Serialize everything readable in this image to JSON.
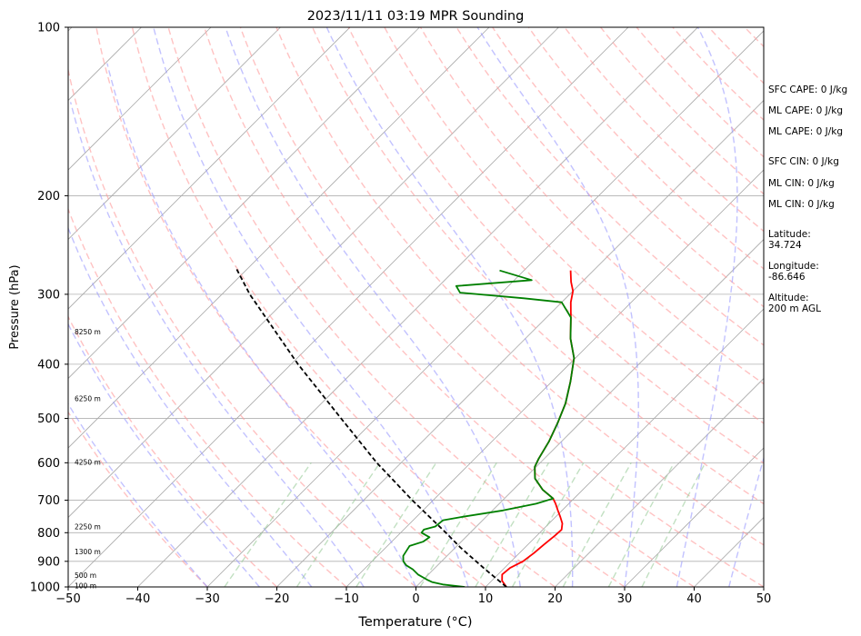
{
  "chart_data": {
    "type": "line",
    "title": "2023/11/11 03:19 MPR Sounding",
    "xlabel": "Temperature (°C)",
    "ylabel": "Pressure (hPa)",
    "xlim": [
      -50,
      50
    ],
    "ylim": [
      1000,
      100
    ],
    "y_scale": "log",
    "skew": "skew-T (isotherms slanted 45°)",
    "x_ticks": [
      "−50",
      "−40",
      "−30",
      "−20",
      "−10",
      "0",
      "10",
      "20",
      "30",
      "40",
      "50"
    ],
    "x_tick_values": [
      -50,
      -40,
      -30,
      -20,
      -10,
      0,
      10,
      20,
      30,
      40,
      50
    ],
    "y_ticks": [
      "100",
      "200",
      "300",
      "400",
      "500",
      "600",
      "700",
      "800",
      "900",
      "1000"
    ],
    "y_tick_values": [
      100,
      200,
      300,
      400,
      500,
      600,
      700,
      800,
      900,
      1000
    ],
    "grid": true,
    "height_labels": [
      {
        "text": "8250 m",
        "p": 350
      },
      {
        "text": "6250 m",
        "p": 460
      },
      {
        "text": "4250 m",
        "p": 598
      },
      {
        "text": "2250 m",
        "p": 780
      },
      {
        "text": "1300 m",
        "p": 865
      },
      {
        "text": "500 m",
        "p": 952
      },
      {
        "text": "100 m",
        "p": 995
      }
    ],
    "series": [
      {
        "role": "temperature",
        "color": "#ff0000",
        "points": [
          [
            1000,
            13.0
          ],
          [
            975,
            11.5
          ],
          [
            950,
            10.6
          ],
          [
            925,
            10.8
          ],
          [
            900,
            11.7
          ],
          [
            870,
            12.1
          ],
          [
            840,
            12.3
          ],
          [
            810,
            12.6
          ],
          [
            790,
            12.7
          ],
          [
            770,
            11.9
          ],
          [
            750,
            10.7
          ],
          [
            730,
            9.4
          ],
          [
            710,
            8.1
          ],
          [
            695,
            7.0
          ],
          [
            670,
            4.2
          ],
          [
            640,
            1.5
          ],
          [
            610,
            -0.2
          ],
          [
            590,
            -0.8
          ],
          [
            550,
            -1.8
          ],
          [
            510,
            -3.2
          ],
          [
            470,
            -4.9
          ],
          [
            430,
            -7.3
          ],
          [
            390,
            -10.2
          ],
          [
            360,
            -13.5
          ],
          [
            330,
            -16.5
          ],
          [
            310,
            -18.7
          ],
          [
            296,
            -20.0
          ],
          [
            285,
            -21.6
          ],
          [
            272,
            -23.3
          ]
        ]
      },
      {
        "role": "dewpoint",
        "color": "#008000",
        "points": [
          [
            1000,
            7.0
          ],
          [
            990,
            3.5
          ],
          [
            980,
            1.6
          ],
          [
            970,
            0.5
          ],
          [
            950,
            -1.5
          ],
          [
            930,
            -3.0
          ],
          [
            915,
            -4.5
          ],
          [
            900,
            -5.5
          ],
          [
            880,
            -6.3
          ],
          [
            860,
            -6.6
          ],
          [
            845,
            -6.8
          ],
          [
            830,
            -5.5
          ],
          [
            815,
            -5.2
          ],
          [
            800,
            -7.0
          ],
          [
            790,
            -7.1
          ],
          [
            780,
            -5.9
          ],
          [
            760,
            -5.7
          ],
          [
            750,
            -3.5
          ],
          [
            730,
            1.5
          ],
          [
            710,
            5.3
          ],
          [
            695,
            7.0
          ],
          [
            670,
            4.2
          ],
          [
            640,
            1.5
          ],
          [
            610,
            -0.2
          ],
          [
            590,
            -0.8
          ],
          [
            550,
            -1.8
          ],
          [
            510,
            -3.2
          ],
          [
            470,
            -4.9
          ],
          [
            430,
            -7.3
          ],
          [
            390,
            -10.2
          ],
          [
            360,
            -13.5
          ],
          [
            330,
            -16.5
          ],
          [
            310,
            -20.0
          ],
          [
            305,
            -26.0
          ],
          [
            298,
            -36.0
          ],
          [
            290,
            -37.5
          ],
          [
            283,
            -27.5
          ],
          [
            272,
            -33.5
          ]
        ]
      },
      {
        "role": "parcel",
        "color": "#000000",
        "style": "dashed",
        "points": [
          [
            1000,
            13.0
          ],
          [
            925,
            7.0
          ],
          [
            850,
            0.7
          ],
          [
            800,
            -3.5
          ],
          [
            700,
            -13.0
          ],
          [
            600,
            -23.5
          ],
          [
            500,
            -35.0
          ],
          [
            400,
            -49.0
          ],
          [
            300,
            -66.0
          ],
          [
            268,
            -72.0
          ]
        ]
      }
    ]
  },
  "side_panel": {
    "sfc_cape": "SFC CAPE: 0 J/kg",
    "ml_cape_1": "ML CAPE: 0 J/kg",
    "ml_cape_2": "ML CAPE: 0 J/kg",
    "sfc_cin": "SFC CIN: 0 J/kg",
    "ml_cin_1": "ML CIN: 0 J/kg",
    "ml_cin_2": "ML CIN: 0 J/kg",
    "lat_label": "Latitude:",
    "lat_value": "34.724",
    "lon_label": "Longitude:",
    "lon_value": "-86.646",
    "alt_label": "Altitude:",
    "alt_value": "200 m AGL"
  },
  "colors": {
    "temperature": "#ff0000",
    "dewpoint": "#008000",
    "parcel": "#000000",
    "dry_adiabat": "#ff9999",
    "moist_adiabat": "#9999ff",
    "mixing_ratio": "#99cc99",
    "isotherm": "#aaaaaa"
  }
}
